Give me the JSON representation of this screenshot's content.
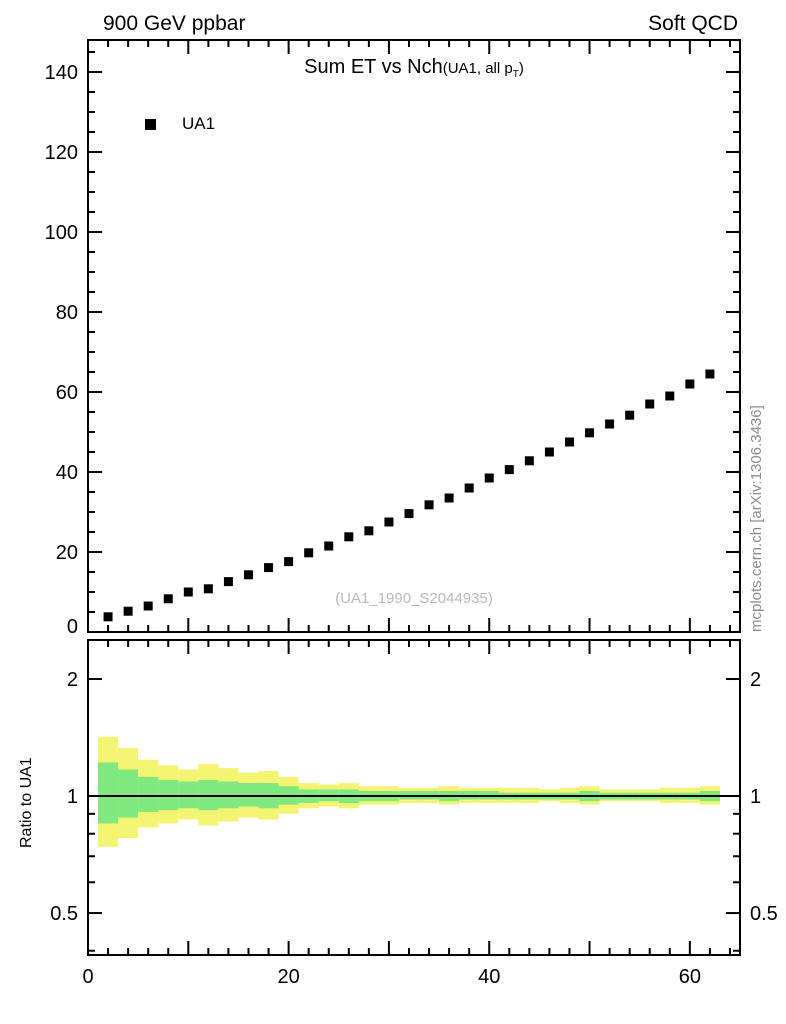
{
  "header": {
    "left": "900 GeV ppbar",
    "right": "Soft QCD"
  },
  "main_panel": {
    "title": "Sum ET vs Nch",
    "title_detail_pre": "(UA1, all p",
    "title_detail_sub": "T",
    "title_detail_post": ")",
    "legend_label": "UA1",
    "watermark": "(UA1_1990_S2044935)"
  },
  "side_text": "mcplots.cern.ch [arXiv:1306.3436]",
  "ratio_panel": {
    "ylabel": "Ratio to UA1"
  },
  "colors": {
    "marker": "#000000",
    "band_outer": "#f4f473",
    "band_inner": "#7fe87f",
    "frame": "#000000",
    "watermark": "#b9b9b9",
    "side_text": "#8c8c8c"
  },
  "chart_data": {
    "type": "scatter",
    "title": "Sum ET vs Nch (UA1, all pT)",
    "xlabel": "",
    "ylabel": "",
    "xlim": [
      0,
      65
    ],
    "ylim": [
      0,
      148
    ],
    "x_tick_labels": [
      0,
      20,
      40,
      60
    ],
    "x_major_step": 10,
    "x_minor_step": 2,
    "y_tick_labels": [
      0,
      20,
      40,
      60,
      80,
      100,
      120,
      140
    ],
    "y_major_step": 20,
    "y_minor_step": 5,
    "grid": false,
    "legend_position": "top-left",
    "series": [
      {
        "name": "UA1",
        "marker": "filled-square",
        "color": "#000000",
        "x": [
          2,
          4,
          6,
          8,
          10,
          12,
          14,
          16,
          18,
          20,
          22,
          24,
          26,
          28,
          30,
          32,
          34,
          36,
          38,
          40,
          42,
          44,
          46,
          48,
          50,
          52,
          54,
          56,
          58,
          60,
          62
        ],
        "y": [
          3.8,
          5.2,
          6.5,
          8.3,
          10.0,
          10.8,
          12.6,
          14.3,
          16.1,
          17.6,
          19.8,
          21.5,
          23.8,
          25.3,
          27.5,
          29.6,
          31.8,
          33.5,
          36.0,
          38.5,
          40.6,
          42.8,
          45.0,
          47.5,
          49.8,
          52.0,
          54.2,
          57.0,
          59.0,
          62.0,
          64.5
        ]
      }
    ],
    "ratio": {
      "ylabel": "Ratio to UA1",
      "yscale": "log",
      "ylim": [
        0.39,
        2.52
      ],
      "y_tick_labels": [
        0.5,
        1,
        2
      ],
      "y_minor_ticks": [
        0.4,
        0.6,
        0.7,
        0.8,
        0.9
      ],
      "reference_line": 1,
      "bin_half_width": 1,
      "x": [
        2,
        4,
        6,
        8,
        10,
        12,
        14,
        16,
        18,
        20,
        22,
        24,
        26,
        28,
        30,
        32,
        34,
        36,
        38,
        40,
        42,
        44,
        46,
        48,
        50,
        52,
        54,
        56,
        58,
        60,
        62
      ],
      "outer_band_lo": [
        0.74,
        0.78,
        0.83,
        0.85,
        0.87,
        0.84,
        0.86,
        0.88,
        0.87,
        0.9,
        0.93,
        0.94,
        0.93,
        0.95,
        0.95,
        0.96,
        0.96,
        0.95,
        0.96,
        0.96,
        0.96,
        0.96,
        0.97,
        0.96,
        0.95,
        0.97,
        0.97,
        0.97,
        0.96,
        0.96,
        0.95
      ],
      "outer_band_hi": [
        1.42,
        1.33,
        1.24,
        1.2,
        1.17,
        1.21,
        1.18,
        1.15,
        1.16,
        1.12,
        1.08,
        1.07,
        1.08,
        1.06,
        1.06,
        1.05,
        1.05,
        1.06,
        1.05,
        1.05,
        1.05,
        1.05,
        1.04,
        1.05,
        1.06,
        1.04,
        1.04,
        1.04,
        1.05,
        1.05,
        1.06
      ],
      "inner_band_lo": [
        0.85,
        0.88,
        0.91,
        0.92,
        0.93,
        0.92,
        0.93,
        0.94,
        0.93,
        0.95,
        0.96,
        0.97,
        0.96,
        0.97,
        0.97,
        0.98,
        0.98,
        0.97,
        0.98,
        0.98,
        0.98,
        0.98,
        0.98,
        0.98,
        0.97,
        0.98,
        0.98,
        0.98,
        0.98,
        0.98,
        0.97
      ],
      "inner_band_hi": [
        1.22,
        1.17,
        1.12,
        1.1,
        1.09,
        1.1,
        1.09,
        1.08,
        1.08,
        1.06,
        1.04,
        1.04,
        1.04,
        1.03,
        1.03,
        1.03,
        1.03,
        1.03,
        1.03,
        1.03,
        1.02,
        1.02,
        1.02,
        1.02,
        1.03,
        1.02,
        1.02,
        1.02,
        1.02,
        1.02,
        1.03
      ]
    }
  }
}
